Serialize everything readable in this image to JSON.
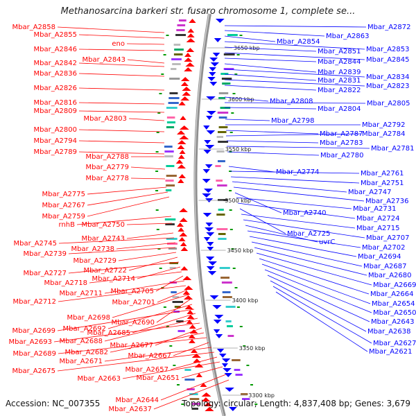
{
  "title": "Methanosarcina barkeri str. fusaro chromosome 1, complete se...",
  "footer": {
    "accession": "Accession: NC_007355",
    "topology": "Topology: circular; Length: 4,837,408 bp; Genes: 3,679"
  },
  "colors": {
    "forward_strand": "#ff0000",
    "reverse_strand": "#0000ff",
    "backbone": "#909090",
    "tick": "#009900"
  },
  "kbp_ticks": [
    "3650 kbp",
    "3600 kbp",
    "3550 kbp",
    "3500 kbp",
    "3450 kbp",
    "3400 kbp",
    "3350 kbp",
    "3300 kbp"
  ],
  "left_labels": [
    "Mbar_A2858",
    "Mbar_A2855",
    "eno",
    "Mbar_A2846",
    "Mbar_A2843",
    "Mbar_A2842",
    "Mbar_A2836",
    "Mbar_A2826",
    "Mbar_A2816",
    "Mbar_A2809",
    "Mbar_A2803",
    "Mbar_A2800",
    "Mbar_A2794",
    "Mbar_A2789",
    "Mbar_A2788",
    "Mbar_A2779",
    "Mbar_A2778",
    "Mbar_A2775",
    "Mbar_A2767",
    "Mbar_A2759",
    "rnhB",
    "Mbar_A2750",
    "Mbar_A2743",
    "Mbar_A2745",
    "Mbar_A2738",
    "Mbar_A2739",
    "Mbar_A2729",
    "Mbar_A2722",
    "Mbar_A2727",
    "Mbar_A2714",
    "Mbar_A2718",
    "Mbar_A2705",
    "Mbar_A2711",
    "Mbar_A2712",
    "Mbar_A2701",
    "Mbar_A2698",
    "Mbar_A2690",
    "Mbar_A2692",
    "Mbar_A2699",
    "Mbar_A2685",
    "Mbar_A2688",
    "Mbar_A2693",
    "Mbar_A2677",
    "Mbar_A2682",
    "Mbar_A2689",
    "Mbar_A2667",
    "Mbar_A2671",
    "Mbar_A2675",
    "Mbar_A2657",
    "Mbar_A2663",
    "Mbar_A2651",
    "Mbar_A2644",
    "Mbar_A2637"
  ],
  "right_labels": [
    "Mbar_A2872",
    "Mbar_A2863",
    "Mbar_A2854",
    "Mbar_A2853",
    "Mbar_A2851",
    "Mbar_A2845",
    "Mbar_A2844",
    "Mbar_A2839",
    "Mbar_A2834",
    "Mbar_A2831",
    "Mbar_A2823",
    "Mbar_A2822",
    "Mbar_A2808",
    "Mbar_A2805",
    "Mbar_A2804",
    "Mbar_A2798",
    "Mbar_A2792",
    "Mbar_A2787",
    "Mbar_A2784",
    "Mbar_A2783",
    "Mbar_A2781",
    "Mbar_A2780",
    "Mbar_A2774",
    "Mbar_A2761",
    "Mbar_A2751",
    "Mbar_A2747",
    "Mbar_A2736",
    "Mbar_A2740",
    "Mbar_A2731",
    "Mbar_A2724",
    "Mbar_A2725",
    "Mbar_A2715",
    "Mbar_A2707",
    "uvrC",
    "Mbar_A2702",
    "Mbar_A2694",
    "Mbar_A2687",
    "Mbar_A2680",
    "Mbar_A2669",
    "Mbar_A2664",
    "Mbar_A2654",
    "Mbar_A2650",
    "Mbar_A2643",
    "Mbar_A2638",
    "Mbar_A2627",
    "Mbar_A2621"
  ]
}
